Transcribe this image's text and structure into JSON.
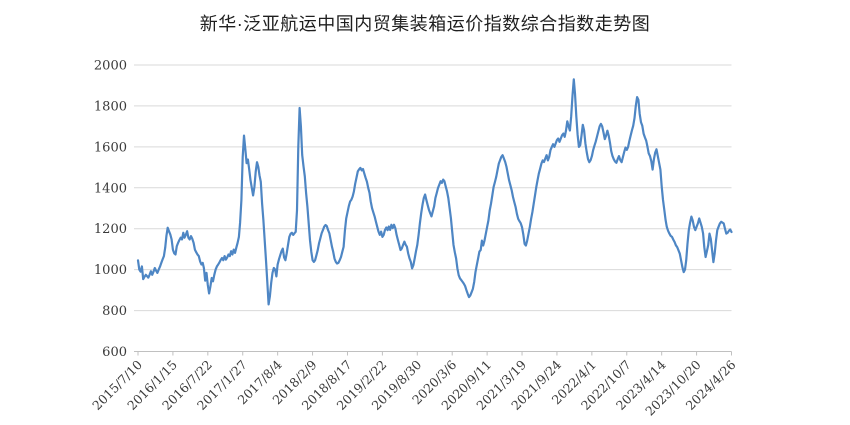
{
  "chart": {
    "background": "#ffffff"
  },
  "chart_data": {
    "type": "line",
    "title": "新华·泛亚航运中国内贸集装箱运价指数综合指数走势图",
    "xlabel": "",
    "ylabel": "",
    "ylim": [
      600,
      2000
    ],
    "y_ticks": [
      600,
      800,
      1000,
      1200,
      1400,
      1600,
      1800,
      2000
    ],
    "grid": "horizontal",
    "legend": "none",
    "line_color": "#4E86C4",
    "grid_color": "#D9D9D9",
    "axis_color": "#C0C0C0",
    "tick_label_color": "#3A3A3A",
    "x_label_every": 27,
    "x_labels": [
      "2015/7/10",
      "2016/1/15",
      "2016/7/22",
      "2017/1/27",
      "2017/8/4",
      "2018/2/9",
      "2018/8/17",
      "2019/2/22",
      "2019/8/30",
      "2020/3/6",
      "2020/9/11",
      "2021/3/19",
      "2021/9/24",
      "2022/4/1",
      "2022/10/7",
      "2023/4/14",
      "2023/10/20",
      "2024/4/26"
    ],
    "x_frequency": "weekly",
    "values": [
      1045,
      1000,
      990,
      1016,
      954,
      965,
      975,
      968,
      961,
      975,
      992,
      975,
      990,
      1008,
      995,
      984,
      1000,
      1015,
      1033,
      1050,
      1066,
      1107,
      1164,
      1205,
      1188,
      1172,
      1148,
      1098,
      1080,
      1074,
      1115,
      1131,
      1145,
      1156,
      1148,
      1180,
      1156,
      1170,
      1188,
      1156,
      1148,
      1164,
      1150,
      1131,
      1098,
      1085,
      1074,
      1066,
      1041,
      1025,
      1033,
      1008,
      946,
      984,
      925,
      884,
      918,
      959,
      943,
      975,
      1000,
      1016,
      1025,
      1036,
      1048,
      1057,
      1046,
      1066,
      1049,
      1060,
      1074,
      1066,
      1090,
      1074,
      1098,
      1082,
      1107,
      1131,
      1160,
      1230,
      1340,
      1550,
      1655,
      1590,
      1520,
      1538,
      1490,
      1437,
      1400,
      1363,
      1404,
      1478,
      1525,
      1502,
      1461,
      1429,
      1322,
      1241,
      1143,
      1045,
      940,
      830,
      870,
      935,
      984,
      1008,
      1000,
      967,
      1024,
      1049,
      1070,
      1090,
      1103,
      1060,
      1046,
      1080,
      1120,
      1160,
      1175,
      1180,
      1170,
      1178,
      1185,
      1290,
      1600,
      1790,
      1700,
      1560,
      1505,
      1456,
      1374,
      1308,
      1226,
      1144,
      1087,
      1046,
      1038,
      1046,
      1070,
      1095,
      1128,
      1152,
      1177,
      1193,
      1210,
      1218,
      1213,
      1193,
      1177,
      1144,
      1111,
      1087,
      1054,
      1038,
      1030,
      1033,
      1046,
      1062,
      1087,
      1111,
      1190,
      1250,
      1280,
      1310,
      1333,
      1341,
      1357,
      1382,
      1420,
      1450,
      1480,
      1490,
      1497,
      1485,
      1492,
      1470,
      1449,
      1430,
      1400,
      1375,
      1334,
      1301,
      1280,
      1260,
      1235,
      1210,
      1186,
      1170,
      1186,
      1160,
      1170,
      1194,
      1206,
      1193,
      1211,
      1194,
      1219,
      1203,
      1219,
      1203,
      1170,
      1145,
      1121,
      1096,
      1104,
      1121,
      1137,
      1121,
      1112,
      1079,
      1055,
      1038,
      1006,
      1022,
      1055,
      1090,
      1121,
      1170,
      1227,
      1276,
      1317,
      1350,
      1367,
      1342,
      1317,
      1293,
      1276,
      1260,
      1285,
      1309,
      1350,
      1374,
      1399,
      1415,
      1432,
      1424,
      1440,
      1432,
      1407,
      1383,
      1350,
      1301,
      1252,
      1186,
      1121,
      1085,
      1055,
      1006,
      973,
      957,
      949,
      940,
      932,
      920,
      900,
      882,
      866,
      874,
      890,
      907,
      940,
      989,
      1022,
      1055,
      1088,
      1096,
      1142,
      1118,
      1142,
      1175,
      1208,
      1240,
      1289,
      1322,
      1363,
      1404,
      1428,
      1453,
      1486,
      1518,
      1534,
      1551,
      1559,
      1543,
      1526,
      1502,
      1469,
      1436,
      1412,
      1387,
      1355,
      1330,
      1306,
      1273,
      1248,
      1237,
      1227,
      1208,
      1172,
      1126,
      1118,
      1142,
      1175,
      1208,
      1248,
      1281,
      1322,
      1363,
      1404,
      1436,
      1469,
      1493,
      1518,
      1534,
      1526,
      1543,
      1559,
      1534,
      1551,
      1584,
      1600,
      1613,
      1600,
      1616,
      1633,
      1641,
      1624,
      1641,
      1657,
      1665,
      1649,
      1680,
      1725,
      1700,
      1680,
      1750,
      1850,
      1930,
      1860,
      1750,
      1660,
      1600,
      1608,
      1655,
      1708,
      1680,
      1617,
      1575,
      1540,
      1525,
      1535,
      1555,
      1583,
      1605,
      1625,
      1650,
      1675,
      1700,
      1712,
      1700,
      1670,
      1638,
      1655,
      1679,
      1655,
      1620,
      1580,
      1555,
      1539,
      1528,
      1522,
      1540,
      1555,
      1535,
      1525,
      1550,
      1575,
      1597,
      1585,
      1600,
      1630,
      1654,
      1680,
      1703,
      1740,
      1800,
      1843,
      1830,
      1761,
      1720,
      1703,
      1665,
      1646,
      1630,
      1600,
      1568,
      1555,
      1530,
      1489,
      1539,
      1572,
      1588,
      1555,
      1522,
      1489,
      1407,
      1341,
      1292,
      1242,
      1209,
      1190,
      1176,
      1165,
      1160,
      1147,
      1135,
      1119,
      1110,
      1094,
      1078,
      1045,
      1012,
      988,
      1000,
      1045,
      1127,
      1193,
      1230,
      1259,
      1240,
      1209,
      1193,
      1210,
      1226,
      1250,
      1230,
      1209,
      1176,
      1110,
      1062,
      1090,
      1120,
      1176,
      1150,
      1094,
      1037,
      1080,
      1143,
      1193,
      1210,
      1226,
      1234,
      1230,
      1226,
      1200,
      1176,
      1180,
      1190,
      1196,
      1184
    ]
  }
}
